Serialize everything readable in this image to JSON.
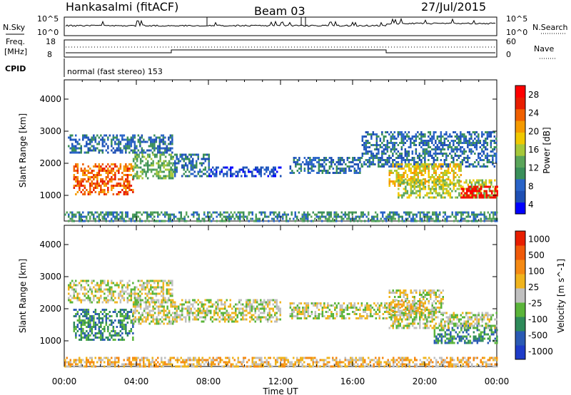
{
  "header": {
    "site": "Hankasalmi (fitACF)",
    "beam": "Beam 03",
    "date": "27/Jul/2015"
  },
  "strip_labels": {
    "nsky": "N.Sky",
    "nsky_top": "10^5",
    "nsky_bottom": "10^0",
    "nsearch": "N.Search",
    "nsearch_top": "10^5",
    "nsearch_bottom": "10^0",
    "freq_line1": "Freq.",
    "freq_line2": "[MHz]",
    "freq_top": "18",
    "freq_bottom": "8",
    "nave": "Nave",
    "nave_top": "60",
    "nave_bottom": "0",
    "cpid": "CPID",
    "mode": "normal (fast stereo) 153"
  },
  "panels": {
    "power_ylabel": "Slant Range [km]",
    "velocity_ylabel": "Slant Range [km]",
    "xlabel": "Time UT"
  },
  "chart_data": [
    {
      "type": "heatmap",
      "quantity": "Power",
      "colorbar_label": "Power [dB]",
      "colorbar_ticks": [
        "28",
        "24",
        "20",
        "16",
        "12",
        "8",
        "4"
      ],
      "colors": [
        "#0000ff",
        "#1e4fb4",
        "#2a64c8",
        "#3a8f5a",
        "#5aa55a",
        "#a6c83a",
        "#f0c800",
        "#f59a00",
        "#f06000",
        "#e81e00",
        "#ff0000"
      ],
      "x_ticks": [
        "00:00",
        "04:00",
        "08:00",
        "12:00",
        "16:00",
        "20:00",
        "00:00"
      ],
      "y_ticks": [
        "1000",
        "2000",
        "3000",
        "4000"
      ],
      "xlim_hours": [
        0,
        24
      ],
      "ylim_km": [
        200,
        4600
      ],
      "echo_regions": [
        {
          "t0": 0.2,
          "t1": 6.0,
          "r0": 2350,
          "r1": 2900,
          "level": 2
        },
        {
          "t0": 0.5,
          "t1": 3.8,
          "r0": 1000,
          "r1": 2000,
          "level": 8
        },
        {
          "t0": 3.8,
          "t1": 6.0,
          "r0": 1500,
          "r1": 2300,
          "level": 4
        },
        {
          "t0": 6.0,
          "t1": 8.0,
          "r0": 1600,
          "r1": 2300,
          "level": 2
        },
        {
          "t0": 8.0,
          "t1": 12.0,
          "r0": 1600,
          "r1": 1900,
          "level": 1
        },
        {
          "t0": 12.5,
          "t1": 16.5,
          "r0": 1700,
          "r1": 2200,
          "level": 2
        },
        {
          "t0": 16.5,
          "t1": 24.0,
          "r0": 1900,
          "r1": 3000,
          "level": 2
        },
        {
          "t0": 18.0,
          "t1": 22.0,
          "r0": 1300,
          "r1": 2000,
          "level": 6
        },
        {
          "t0": 18.5,
          "t1": 24.0,
          "r0": 900,
          "r1": 1500,
          "level": 5
        },
        {
          "t0": 22.0,
          "t1": 24.0,
          "r0": 900,
          "r1": 1300,
          "level": 10
        },
        {
          "t0": 0.0,
          "t1": 24.0,
          "r0": 200,
          "r1": 500,
          "level": 3
        }
      ]
    },
    {
      "type": "heatmap",
      "quantity": "Velocity",
      "colorbar_label": "Velocity [m s^-1]",
      "colorbar_ticks": [
        "1000",
        "500",
        "100",
        "25",
        "-25",
        "-100",
        "-500",
        "-1000"
      ],
      "colors": [
        "#1e3cc8",
        "#2a5ab4",
        "#2e8a5a",
        "#5ab43a",
        "#c0c0c0",
        "#f0b41e",
        "#f58a14",
        "#f05a0a",
        "#e81e00"
      ],
      "x_ticks": [
        "00:00",
        "04:00",
        "08:00",
        "12:00",
        "16:00",
        "20:00",
        "00:00"
      ],
      "y_ticks": [
        "1000",
        "2000",
        "3000",
        "4000"
      ],
      "xlim_hours": [
        0,
        24
      ],
      "ylim_km": [
        200,
        4600
      ],
      "echo_regions": [
        {
          "t0": 0.2,
          "t1": 6.0,
          "r0": 2200,
          "r1": 2900,
          "level": 4
        },
        {
          "t0": 0.5,
          "t1": 3.8,
          "r0": 1000,
          "r1": 2000,
          "level": 2
        },
        {
          "t0": 3.8,
          "t1": 6.0,
          "r0": 1500,
          "r1": 2300,
          "level": 4
        },
        {
          "t0": 6.0,
          "t1": 12.0,
          "r0": 1600,
          "r1": 2300,
          "level": 4
        },
        {
          "t0": 12.5,
          "t1": 18.0,
          "r0": 1700,
          "r1": 2200,
          "level": 4
        },
        {
          "t0": 18.0,
          "t1": 21.0,
          "r0": 1800,
          "r1": 2600,
          "level": 4
        },
        {
          "t0": 18.0,
          "t1": 20.0,
          "r0": 1900,
          "r1": 2300,
          "level": 5
        },
        {
          "t0": 20.5,
          "t1": 24.0,
          "r0": 900,
          "r1": 1500,
          "level": 2
        },
        {
          "t0": 18.0,
          "t1": 24.0,
          "r0": 1400,
          "r1": 1900,
          "level": 4
        },
        {
          "t0": 0.0,
          "t1": 24.0,
          "r0": 200,
          "r1": 500,
          "level": 5
        }
      ]
    }
  ]
}
